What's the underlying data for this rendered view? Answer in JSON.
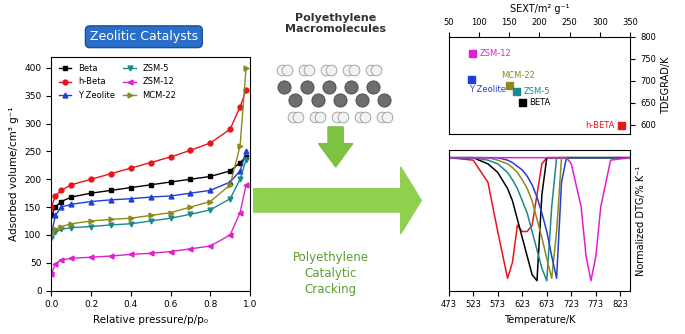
{
  "chart_data": [
    {
      "type": "line",
      "xlabel": "Relative pressure/p/p₀",
      "ylabel": "Adsorbed volume/cm³ g⁻¹",
      "x": [
        0.0,
        0.02,
        0.05,
        0.1,
        0.2,
        0.3,
        0.4,
        0.5,
        0.6,
        0.7,
        0.8,
        0.9,
        0.95,
        0.98
      ],
      "xlim": [
        0.0,
        1.0
      ],
      "xticks": [
        {
          "value": 0.0,
          "label": "0.0"
        },
        {
          "value": 0.2,
          "label": "0.2"
        },
        {
          "value": 0.4,
          "label": "0.4"
        },
        {
          "value": 0.6,
          "label": "0.6"
        },
        {
          "value": 0.8,
          "label": "0.8"
        },
        {
          "value": 1.0,
          "label": "1.0"
        }
      ],
      "ylim": [
        0,
        420
      ],
      "yticks": [
        0,
        50,
        100,
        150,
        200,
        250,
        300,
        350,
        400
      ],
      "legend": "upper left",
      "series": [
        {
          "name": "Beta",
          "color": "#000000",
          "marker": "square",
          "values": [
            135,
            150,
            160,
            168,
            175,
            180,
            185,
            190,
            195,
            200,
            205,
            215,
            230,
            240
          ]
        },
        {
          "name": "h-Beta",
          "color": "#e8141b",
          "marker": "circle",
          "values": [
            150,
            170,
            180,
            190,
            200,
            210,
            220,
            230,
            240,
            252,
            265,
            290,
            330,
            360
          ]
        },
        {
          "name": "Y Zeolite",
          "color": "#1f3fd6",
          "marker": "triangle_up",
          "values": [
            100,
            135,
            150,
            155,
            160,
            163,
            165,
            168,
            170,
            175,
            180,
            195,
            215,
            250
          ]
        },
        {
          "name": "ZSM-5",
          "color": "#1a8a8a",
          "marker": "triangle_down",
          "values": [
            95,
            105,
            110,
            113,
            115,
            118,
            120,
            125,
            130,
            137,
            145,
            165,
            200,
            235
          ]
        },
        {
          "name": "ZSM-12",
          "color": "#e020d0",
          "marker": "triangle_left",
          "values": [
            30,
            48,
            55,
            58,
            60,
            62,
            65,
            67,
            70,
            75,
            80,
            100,
            140,
            190
          ]
        },
        {
          "name": "MCM-22",
          "color": "#8b8b1a",
          "marker": "triangle_right",
          "values": [
            100,
            110,
            115,
            120,
            125,
            128,
            130,
            135,
            140,
            150,
            160,
            190,
            260,
            400
          ]
        }
      ]
    },
    {
      "type": "scatter",
      "xlabel": "SEXT/m² g⁻¹",
      "ylabel": "TDEGRAD/K",
      "categories": [
        "ZSM-12",
        "Y Zeolite",
        "MCM-22",
        "ZSM-5",
        "BETA",
        "h-BETA"
      ],
      "x": [
        90,
        88,
        150,
        162,
        172,
        335
      ],
      "values": [
        762,
        703,
        690,
        675,
        650,
        598
      ],
      "colors": [
        "#e020d0",
        "#1f3fd6",
        "#8b8b1a",
        "#1a8a8a",
        "#000000",
        "#e8141b"
      ],
      "marker": "square",
      "data_labels": true,
      "xlim": [
        50,
        350
      ],
      "xticks": [
        50,
        100,
        150,
        200,
        250,
        300,
        350
      ],
      "ylim": [
        580,
        800
      ],
      "yticks": [
        600,
        650,
        700,
        750,
        800
      ]
    },
    {
      "type": "line",
      "xlabel": "Temperature/K",
      "ylabel": "Normalized DTG/% K⁻¹",
      "tick_labels": "x",
      "x": [
        473,
        523,
        553,
        573,
        593,
        603,
        613,
        623,
        633,
        643,
        653,
        663,
        673,
        683,
        693,
        703,
        713,
        723,
        743,
        753,
        763,
        773,
        783,
        803,
        843
      ],
      "xlim": [
        473,
        843
      ],
      "xticks": [
        473,
        523,
        573,
        623,
        673,
        723,
        773,
        823
      ],
      "ylim": [
        -1.08,
        0.06
      ],
      "line_style": "solid",
      "series": [
        {
          "color": "#e8141b",
          "values": [
            0,
            -0.02,
            -0.2,
            -0.6,
            -0.98,
            -0.85,
            -0.55,
            -0.6,
            -0.6,
            -0.55,
            -0.3,
            -0.05,
            0,
            0,
            0,
            0,
            0,
            0,
            0,
            0,
            0,
            0,
            0,
            0,
            0
          ]
        },
        {
          "color": "#000000",
          "values": [
            0,
            0,
            -0.05,
            -0.12,
            -0.25,
            -0.35,
            -0.5,
            -0.65,
            -0.8,
            -0.95,
            -1.0,
            -0.3,
            0,
            0,
            0,
            0,
            0,
            0,
            0,
            0,
            0,
            0,
            0,
            0,
            0
          ]
        },
        {
          "color": "#1a8a8a",
          "values": [
            0,
            0,
            -0.02,
            -0.05,
            -0.12,
            -0.18,
            -0.25,
            -0.35,
            -0.45,
            -0.6,
            -0.75,
            -0.9,
            -1.0,
            -0.4,
            0,
            0,
            0,
            0,
            0,
            0,
            0,
            0,
            0,
            0,
            0
          ]
        },
        {
          "color": "#8b8b1a",
          "values": [
            0,
            0,
            0,
            -0.02,
            -0.05,
            -0.08,
            -0.12,
            -0.18,
            -0.25,
            -0.35,
            -0.5,
            -0.65,
            -0.82,
            -0.98,
            -0.6,
            0,
            0,
            0,
            0,
            0,
            0,
            0,
            0,
            0,
            0
          ]
        },
        {
          "color": "#1f3fd6",
          "values": [
            0,
            0,
            0,
            0,
            -0.02,
            -0.04,
            -0.07,
            -0.1,
            -0.15,
            -0.22,
            -0.32,
            -0.45,
            -0.6,
            -0.8,
            -0.98,
            -0.2,
            0,
            0,
            0,
            0,
            0,
            0,
            0,
            0,
            0
          ]
        },
        {
          "color": "#e020d0",
          "values": [
            0,
            0,
            0,
            0,
            0,
            0,
            0,
            0,
            0,
            0,
            0,
            0,
            0,
            0,
            0,
            0,
            0,
            -0.05,
            -0.4,
            -0.8,
            -1.0,
            -0.8,
            -0.4,
            -0.02,
            0
          ]
        }
      ]
    }
  ],
  "diagram": {
    "labels": {
      "catalysts": "Zeolitic Catalysts",
      "feed": "Polyethylene\nMacromolecules",
      "process": "Polyethylene\nCatalytic\nCracking"
    }
  }
}
